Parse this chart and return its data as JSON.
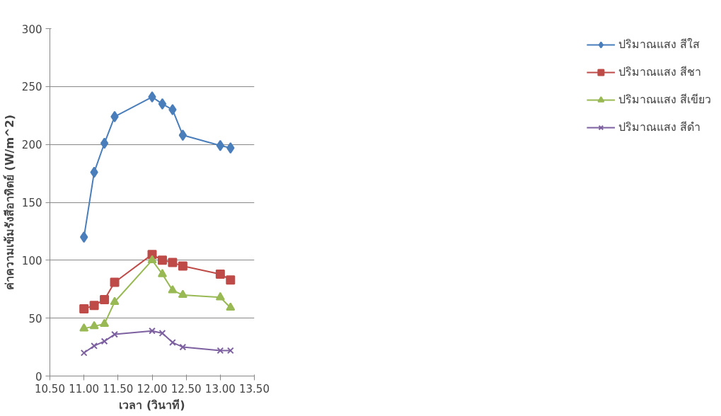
{
  "chart_data": {
    "type": "line",
    "xlabel": "เวลา (วินาที)",
    "ylabel": "ค่าความเข้มรังสีอาทิตย์ (W/m^2)",
    "x": [
      11.0,
      11.15,
      11.3,
      11.45,
      12.0,
      12.15,
      12.3,
      12.45,
      13.0,
      13.15
    ],
    "series": [
      {
        "name": "ปริมาณแสง สีใส",
        "color": "#4a7ebb",
        "marker": "diamond",
        "values": [
          120,
          176,
          201,
          224,
          241,
          235,
          230,
          208,
          199,
          197
        ]
      },
      {
        "name": "ปริมาณแสง สีชา",
        "color": "#be4b48",
        "marker": "square",
        "values": [
          58,
          61,
          66,
          81,
          105,
          100,
          98,
          95,
          88,
          83
        ]
      },
      {
        "name": "ปริมาณแสง สีเขียว",
        "color": "#98b954",
        "marker": "triangle",
        "values": [
          41,
          43,
          45,
          64,
          100,
          88,
          74,
          70,
          68,
          59
        ]
      },
      {
        "name": "ปริมาณแสง สีดำ",
        "color": "#7d60a0",
        "marker": "cross",
        "values": [
          20,
          26,
          30,
          36,
          39,
          37,
          29,
          25,
          22,
          22
        ]
      }
    ],
    "xlim": [
      10.5,
      13.5
    ],
    "ylim": [
      0,
      300
    ],
    "xticks": [
      {
        "value": 10.5,
        "label": "10.50"
      },
      {
        "value": 11.0,
        "label": "11.00"
      },
      {
        "value": 11.5,
        "label": "11.50"
      },
      {
        "value": 12.0,
        "label": "12.00"
      },
      {
        "value": 12.5,
        "label": "12.50"
      },
      {
        "value": 13.0,
        "label": "13.00"
      },
      {
        "value": 13.5,
        "label": "13.50"
      }
    ],
    "yticks": [
      0,
      50,
      100,
      150,
      200,
      250,
      300
    ],
    "grid": "y",
    "legend": "right",
    "line_style": "solid"
  }
}
